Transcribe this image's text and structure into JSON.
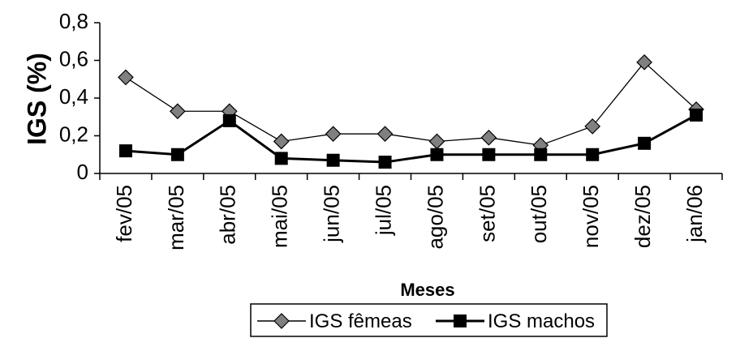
{
  "chart_data": {
    "type": "line",
    "title": "",
    "xlabel": "Meses",
    "ylabel": "IGS (%)",
    "ylim": [
      0,
      0.8
    ],
    "yticks": [
      "0",
      "0,2",
      "0,4",
      "0,6",
      "0,8"
    ],
    "categories": [
      "fev/05",
      "mar/05",
      "abr/05",
      "mai/05",
      "jun/05",
      "jul/05",
      "ago/05",
      "set/05",
      "out/05",
      "nov/05",
      "dez/05",
      "jan/06"
    ],
    "grid": false,
    "legend_position": "bottom",
    "series": [
      {
        "name": "IGS fêmeas",
        "marker": "diamond",
        "color": "#808080",
        "line_color": "#000000",
        "values": [
          0.51,
          0.33,
          0.33,
          0.17,
          0.21,
          0.21,
          0.17,
          0.19,
          0.15,
          0.25,
          0.59,
          0.34
        ]
      },
      {
        "name": "IGS machos",
        "marker": "square",
        "color": "#000000",
        "line_color": "#000000",
        "values": [
          0.12,
          0.1,
          0.28,
          0.08,
          0.07,
          0.06,
          0.1,
          0.1,
          0.1,
          0.1,
          0.16,
          0.31
        ]
      }
    ]
  }
}
